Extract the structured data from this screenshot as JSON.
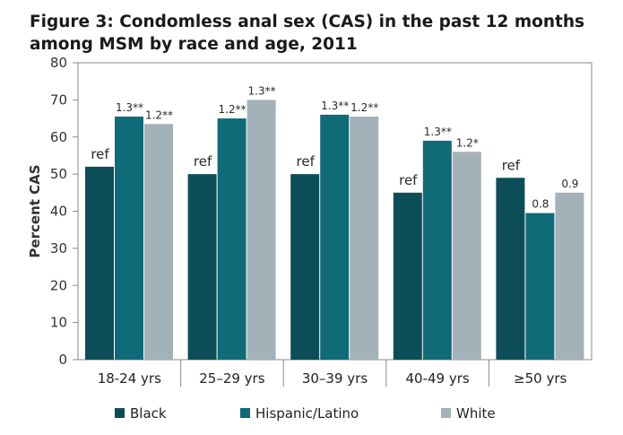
{
  "chart_data": {
    "type": "bar",
    "title_line1": "Figure 3: Condomless anal sex (CAS) in the past 12 months",
    "title_line2": "among MSM by race and age, 2011",
    "xlabel": "",
    "ylabel": "Percent CAS",
    "ylim": [
      0,
      80
    ],
    "yticks": [
      "0",
      "10",
      "20",
      "30",
      "40",
      "50",
      "60",
      "70",
      "80"
    ],
    "grid": false,
    "legend_position": "bottom",
    "categories": [
      "18-24 yrs",
      "25–29 yrs",
      "30–39 yrs",
      "40-49 yrs",
      "≥50 yrs"
    ],
    "series": [
      {
        "name": "Black",
        "color": "#0c4e58",
        "values": [
          52,
          50,
          50,
          45,
          49
        ],
        "labels": [
          "ref",
          "ref",
          "ref",
          "ref",
          "ref"
        ]
      },
      {
        "name": "Hispanic/Latino",
        "color": "#0f6b78",
        "values": [
          65.5,
          65,
          66,
          59,
          39.5
        ],
        "labels": [
          "1.3**",
          "1.2**",
          "1.3**",
          "1.3**",
          "0.8"
        ]
      },
      {
        "name": "White",
        "color": "#a3b2b8",
        "values": [
          63.5,
          70,
          65.5,
          56,
          45
        ],
        "labels": [
          "1.2**",
          "1.3**",
          "1.2**",
          "1.2*",
          "0.9"
        ]
      }
    ]
  }
}
